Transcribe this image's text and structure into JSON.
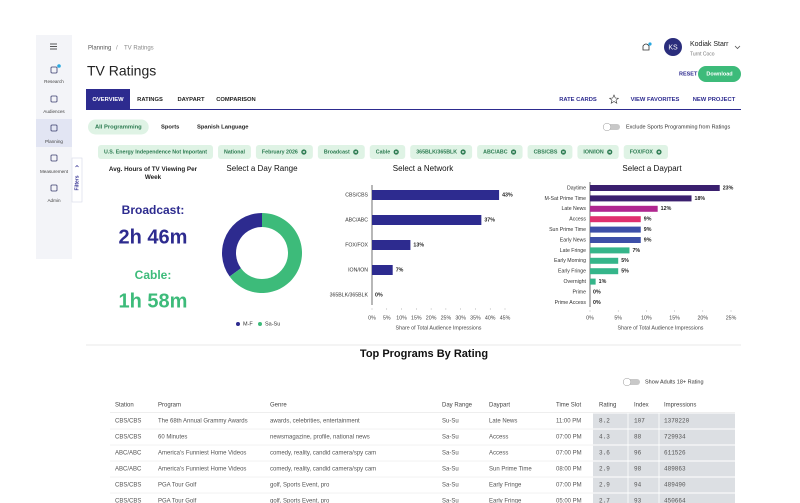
{
  "sidebar": {
    "items": [
      "Research",
      "Audiences",
      "Planning",
      "Measurement",
      "Admin"
    ],
    "filters_tab": "Filters"
  },
  "breadcrumb": {
    "items": [
      "Planning",
      "TV Ratings"
    ],
    "separator": "/"
  },
  "header": {
    "title": "TV Ratings",
    "user": {
      "initials": "KS",
      "name": "Kodiak Starr",
      "org": "Turnt Coco"
    },
    "buttons": [
      "RESET",
      "Download"
    ]
  },
  "tabs": [
    "OVERVIEW",
    "RATINGS",
    "DAYPART",
    "COMPARISON"
  ],
  "tab_links": [
    "RATE CARDS",
    "VIEW FAVORITES",
    "NEW PROJECT"
  ],
  "programming_chips": [
    "All Programming",
    "Sports",
    "Spanish Language"
  ],
  "exclude_toggle": "Exclude Sports Programming from Ratings",
  "filter_tags": [
    "U.S. Energy Independence Not Important",
    "National",
    "February 2026",
    "Broadcast",
    "Cable",
    "365BLK/365BLK",
    "ABC/ABC",
    "CBS/CBS",
    "ION/ION",
    "FOX/FOX"
  ],
  "viewing": {
    "title": "Avg. Hours of TV Viewing Per Week",
    "items": [
      {
        "label": "Broadcast:",
        "value": "2h 46m"
      },
      {
        "label": "Cable:",
        "value": "1h 58m"
      }
    ]
  },
  "chart_data": [
    {
      "type": "pie",
      "donut": true,
      "title": "Select a Day Range",
      "categories": [
        "M-F",
        "Sa-Su"
      ],
      "values": [
        35,
        65
      ],
      "colors": [
        "#2d2b8f",
        "#3dbb7a"
      ]
    },
    {
      "type": "bar",
      "orientation": "horizontal",
      "title": "Select a Network",
      "categories": [
        "CBS/CBS",
        "ABC/ABC",
        "FOX/FOX",
        "ION/ION",
        "365BLK/365BLK"
      ],
      "values": [
        43,
        37,
        13,
        7,
        0
      ],
      "value_labels": [
        "43%",
        "37%",
        "13%",
        "7%",
        "0%"
      ],
      "color": "#2d2b8f",
      "xlim": [
        0,
        45
      ],
      "xticks": [
        {
          "value": 0,
          "label": "0%"
        },
        {
          "value": 5,
          "label": "5%"
        },
        {
          "value": 10,
          "label": "10%"
        },
        {
          "value": 15,
          "label": "15%"
        },
        {
          "value": 20,
          "label": "20%"
        },
        {
          "value": 25,
          "label": "25%"
        },
        {
          "value": 30,
          "label": "30%"
        },
        {
          "value": 35,
          "label": "35%"
        },
        {
          "value": 40,
          "label": "40%"
        },
        {
          "value": 45,
          "label": "45%"
        }
      ],
      "xlabel": "Share of Total Audience Impressions"
    },
    {
      "type": "bar",
      "orientation": "horizontal",
      "title": "Select a Daypart",
      "categories": [
        "Daytime",
        "M-Sat Prime Time",
        "Late News",
        "Access",
        "Sun Prime Time",
        "Early News",
        "Late Fringe",
        "Early Morning",
        "Early Fringe",
        "Overnight",
        "Prime",
        "Prime Access"
      ],
      "values": [
        23,
        18,
        12,
        9,
        9,
        9,
        7,
        5,
        5,
        1,
        0,
        0
      ],
      "value_labels": [
        "23%",
        "18%",
        "12%",
        "9%",
        "9%",
        "9%",
        "7%",
        "5%",
        "5%",
        "1%",
        "0%",
        "0%"
      ],
      "colors": [
        "#3a1f6e",
        "#3a1f6e",
        "#b0268f",
        "#e0306e",
        "#3d4fa8",
        "#3d4fa8",
        "#35b58a",
        "#35b58a",
        "#35b58a",
        "#35b58a",
        "#35b58a",
        "#35b58a"
      ],
      "xlim": [
        0,
        25
      ],
      "xticks": [
        {
          "value": 0,
          "label": "0%"
        },
        {
          "value": 5,
          "label": "5%"
        },
        {
          "value": 10,
          "label": "10%"
        },
        {
          "value": 15,
          "label": "15%"
        },
        {
          "value": 20,
          "label": "20%"
        },
        {
          "value": 25,
          "label": "25%"
        }
      ],
      "xlabel": "Share of Total Audience Impressions"
    }
  ],
  "programs": {
    "title": "Top Programs By Rating",
    "toggle": "Show Adults 18+ Rating",
    "columns": [
      "Station",
      "Program",
      "Genre",
      "Day Range",
      "Daypart",
      "Time Slot",
      "Rating",
      "Index",
      "Impressions"
    ],
    "rows": [
      [
        "CBS/CBS",
        "The 68th Annual Grammy Awards",
        "awards, celebrities, entertainment",
        "Su-Su",
        "Late News",
        "11:00 PM",
        8.2,
        107,
        1378220
      ],
      [
        "CBS/CBS",
        "60 Minutes",
        "newsmagazine, profile, national news",
        "Sa-Su",
        "Access",
        "07:00 PM",
        4.3,
        88,
        729934
      ],
      [
        "ABC/ABC",
        "America's Funniest Home Videos",
        "comedy, reality, candid camera/spy cam",
        "Sa-Su",
        "Access",
        "07:00 PM",
        3.6,
        96,
        611526
      ],
      [
        "ABC/ABC",
        "America's Funniest Home Videos",
        "comedy, reality, candid camera/spy cam",
        "Sa-Su",
        "Sun Prime Time",
        "08:00 PM",
        2.9,
        98,
        489863
      ],
      [
        "CBS/CBS",
        "PGA Tour Golf",
        "golf, Sports Event, pro",
        "Sa-Su",
        "Early Fringe",
        "07:00 PM",
        2.9,
        94,
        489490
      ],
      [
        "CBS/CBS",
        "PGA Tour Golf",
        "golf, Sports Event, pro",
        "Sa-Su",
        "Early Fringe",
        "05:00 PM",
        2.7,
        93,
        450664
      ]
    ]
  }
}
